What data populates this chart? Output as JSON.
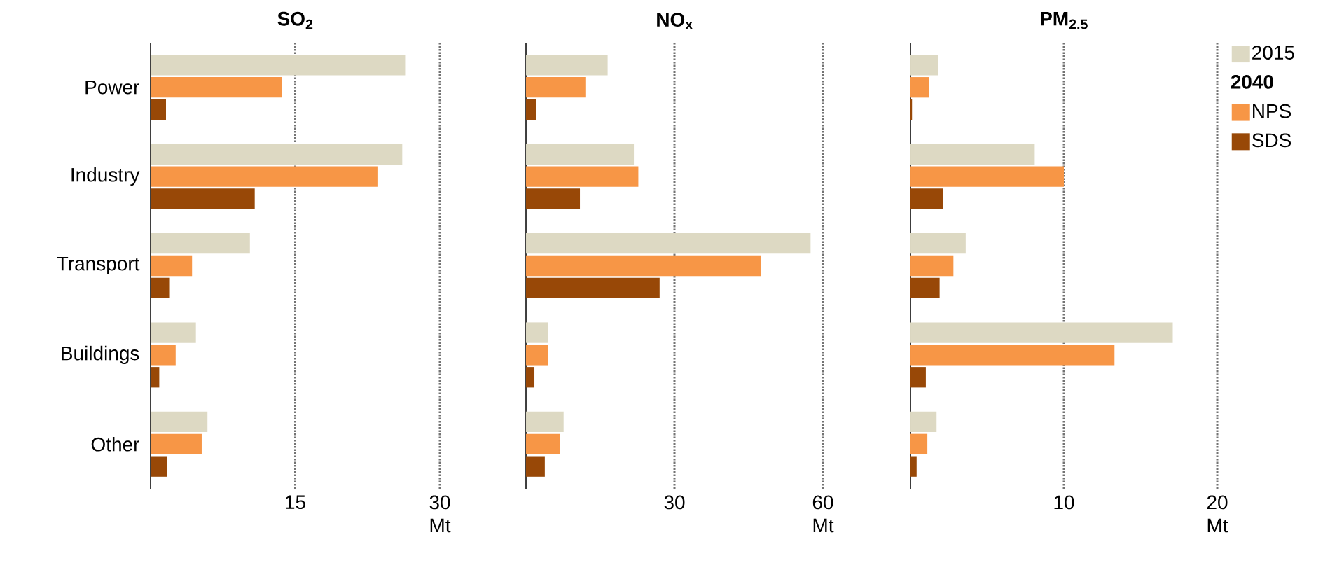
{
  "chart_data": [
    {
      "type": "bar",
      "orientation": "horizontal",
      "title": "SO$_{2}$",
      "categories": [
        "Power",
        "Industry",
        "Transport",
        "Buildings",
        "Other"
      ],
      "series": [
        {
          "color": "#ddd9c3",
          "values": [
            26.4,
            26.1,
            10.3,
            4.7,
            5.9
          ]
        },
        {
          "color": "#f79646",
          "values": [
            13.6,
            23.6,
            4.3,
            2.6,
            5.3
          ]
        },
        {
          "color": "#984807",
          "values": [
            1.6,
            10.8,
            2.0,
            0.9,
            1.7
          ]
        }
      ],
      "xlim": [
        0,
        30
      ],
      "xticks": [
        15,
        {
          "value": 30,
          "label": "30 Mt"
        }
      ],
      "grid": "x"
    },
    {
      "type": "bar",
      "orientation": "horizontal",
      "title": "NO$_{x}$",
      "categories": [
        null,
        null,
        null,
        null,
        null
      ],
      "series": [
        {
          "color": "#ddd9c3",
          "values": [
            16.5,
            21.8,
            57.5,
            4.5,
            7.6
          ]
        },
        {
          "color": "#f79646",
          "values": [
            12.0,
            22.7,
            47.5,
            4.5,
            6.8
          ]
        },
        {
          "color": "#984807",
          "values": [
            2.1,
            10.9,
            27.0,
            1.7,
            3.8
          ]
        }
      ],
      "xlim": [
        0,
        60
      ],
      "xticks": [
        30,
        {
          "value": 60,
          "label": "60 Mt"
        }
      ],
      "grid": "x",
      "tick_labels": "x"
    },
    {
      "type": "bar",
      "orientation": "horizontal",
      "title": "PM$_{2.5}$",
      "categories": [
        null,
        null,
        null,
        null,
        null
      ],
      "series": [
        {
          "name": "2015",
          "color": "#ddd9c3",
          "values": [
            1.8,
            8.1,
            3.6,
            17.1,
            1.7
          ]
        },
        {
          "name": "NPS",
          "color": "#f79646",
          "values": [
            1.2,
            10.0,
            2.8,
            13.3,
            1.1
          ]
        },
        {
          "name": "SDS",
          "color": "#984807",
          "values": [
            0.1,
            2.1,
            1.9,
            1.0,
            0.4
          ]
        }
      ],
      "xlim": [
        0,
        20
      ],
      "xticks": [
        10,
        {
          "value": 20,
          "label": "20 Mt"
        }
      ],
      "grid": "x",
      "tick_labels": "x",
      "legend": "right",
      "legend_title": "2040"
    }
  ]
}
